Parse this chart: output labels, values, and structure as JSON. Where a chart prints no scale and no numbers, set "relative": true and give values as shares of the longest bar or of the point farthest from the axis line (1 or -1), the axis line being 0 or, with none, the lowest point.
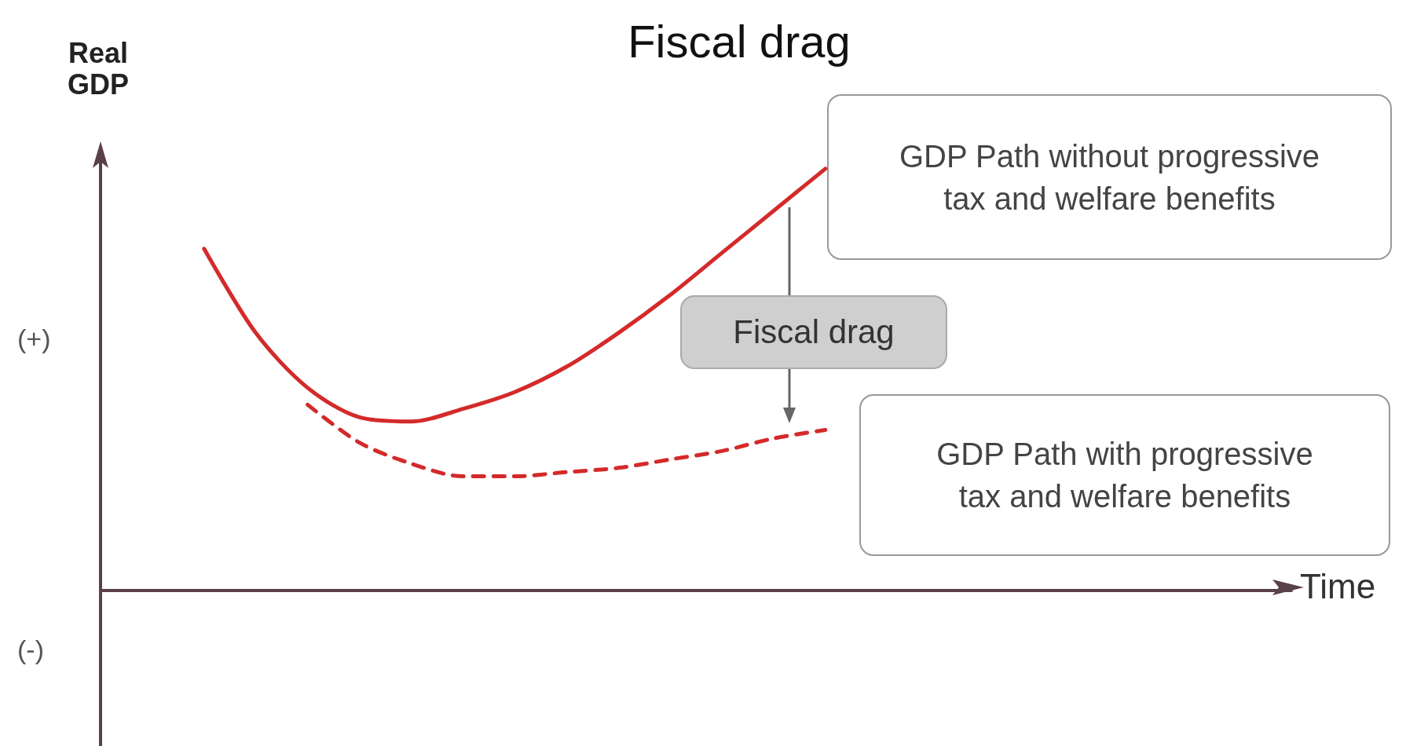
{
  "chart_data": {
    "type": "line",
    "title": "Fiscal drag",
    "ylabel": "Real GDP",
    "xlabel": "Time",
    "relative": true,
    "marker": "none",
    "grid": false,
    "categories": [
      null,
      null,
      null,
      null,
      null,
      null,
      null,
      null,
      null,
      null,
      null,
      null,
      null,
      null,
      null,
      null,
      null,
      null,
      null,
      null,
      null,
      null,
      null,
      null
    ],
    "series": [
      {
        "color": "#d42a2a",
        "line_style": "solid",
        "values": [
          null,
          null,
          0.81,
          0.61,
          0.48,
          0.41,
          0.4,
          0.43,
          0.47,
          0.53,
          0.61,
          0.7,
          0.8,
          0.9,
          1,
          null,
          null,
          null,
          null,
          null,
          null,
          null,
          null,
          null
        ]
      },
      {
        "color": "#d42a2a",
        "line_style": "dashed",
        "values": [
          null,
          null,
          null,
          null,
          0.44,
          0.35,
          0.3,
          0.27,
          0.27,
          0.28,
          0.29,
          0.31,
          0.33,
          0.36,
          0.38,
          null,
          null,
          null,
          null,
          null,
          null,
          null,
          null,
          null
        ]
      }
    ],
    "annotations": [
      "GDP Path without progressive\ntax and welfare benefits",
      "Fiscal drag",
      "GDP Path with progressive\ntax and welfare benefits",
      "(+)",
      "(-)"
    ]
  }
}
